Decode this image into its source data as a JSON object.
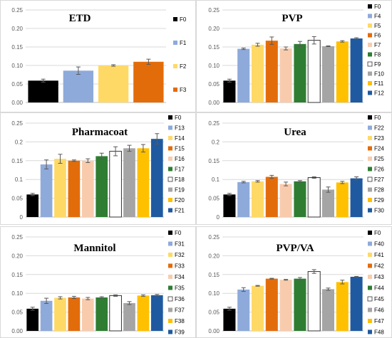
{
  "chart_data": [
    {
      "type": "bar",
      "title": "ETD",
      "ylim": [
        0,
        0.25
      ],
      "yticks": [
        "0.00",
        "0.05",
        "0.10",
        "0.15",
        "0.20",
        "0.25"
      ],
      "grid": true,
      "legend": "right",
      "categories": [
        "F0",
        "F1",
        "F2",
        "F3"
      ],
      "values": [
        0.059,
        0.086,
        0.1,
        0.11
      ],
      "errors": [
        0.004,
        0.01,
        0.002,
        0.007
      ],
      "colors": [
        "#000000",
        "#8eaadb",
        "#ffd966",
        "#e36c0a"
      ]
    },
    {
      "type": "bar",
      "title": "PVP",
      "ylim": [
        0,
        0.25
      ],
      "yticks": [
        "0.00",
        "0.05",
        "0.10",
        "0.15",
        "0.20",
        "0.25"
      ],
      "grid": true,
      "legend": "right",
      "categories": [
        "F0",
        "F4",
        "F5",
        "F6",
        "F7",
        "F8",
        "F9",
        "F10",
        "F11",
        "F12"
      ],
      "values": [
        0.059,
        0.145,
        0.156,
        0.167,
        0.146,
        0.158,
        0.168,
        0.152,
        0.165,
        0.173
      ],
      "errors": [
        0.004,
        0.002,
        0.004,
        0.01,
        0.004,
        0.007,
        0.01,
        0.001,
        0.002,
        0.002
      ],
      "colors": [
        "#000000",
        "#8eaadb",
        "#ffd966",
        "#e36c0a",
        "#f8cbad",
        "#2e7d32",
        "#ffffff",
        "#a5a5a5",
        "#ffc000",
        "#1f5aa0"
      ]
    },
    {
      "type": "bar",
      "title": "Pharmacoat",
      "ylim": [
        0,
        0.25
      ],
      "yticks": [
        "0",
        "0.05",
        "0.1",
        "0.15",
        "0.2",
        "0.25"
      ],
      "grid": true,
      "legend": "right",
      "categories": [
        "F0",
        "F13",
        "F14",
        "F15",
        "F16",
        "F17",
        "F18",
        "F19",
        "F20",
        "F21"
      ],
      "values": [
        0.06,
        0.14,
        0.155,
        0.15,
        0.15,
        0.162,
        0.175,
        0.183,
        0.183,
        0.208
      ],
      "errors": [
        0.003,
        0.012,
        0.012,
        0.002,
        0.005,
        0.008,
        0.012,
        0.008,
        0.01,
        0.014
      ],
      "colors": [
        "#000000",
        "#8eaadb",
        "#ffd966",
        "#e36c0a",
        "#f8cbad",
        "#2e7d32",
        "#ffffff",
        "#a5a5a5",
        "#ffc000",
        "#1f5aa0"
      ]
    },
    {
      "type": "bar",
      "title": "Urea",
      "ylim": [
        0,
        0.25
      ],
      "yticks": [
        "0",
        "0.05",
        "0.1",
        "0.15",
        "0.2",
        "0.25"
      ],
      "grid": true,
      "legend": "right",
      "categories": [
        "F0",
        "F22",
        "F23",
        "F24",
        "F25",
        "F26",
        "F27",
        "F28",
        "F29",
        "F30"
      ],
      "values": [
        0.06,
        0.093,
        0.095,
        0.107,
        0.088,
        0.095,
        0.105,
        0.073,
        0.092,
        0.103
      ],
      "errors": [
        0.003,
        0.002,
        0.002,
        0.004,
        0.005,
        0.002,
        0.002,
        0.007,
        0.003,
        0.004
      ],
      "colors": [
        "#000000",
        "#8eaadb",
        "#ffd966",
        "#e36c0a",
        "#f8cbad",
        "#2e7d32",
        "#ffffff",
        "#a5a5a5",
        "#ffc000",
        "#1f5aa0"
      ]
    },
    {
      "type": "bar",
      "title": "Mannitol",
      "ylim": [
        0,
        0.25
      ],
      "yticks": [
        "0.00",
        "0.05",
        "0.10",
        "0.15",
        "0.20",
        "0.25"
      ],
      "grid": true,
      "legend": "right",
      "categories": [
        "F0",
        "F31",
        "F32",
        "F33",
        "F34",
        "F35",
        "F36",
        "F37",
        "F38",
        "F39"
      ],
      "values": [
        0.059,
        0.08,
        0.088,
        0.089,
        0.086,
        0.089,
        0.094,
        0.074,
        0.094,
        0.095
      ],
      "errors": [
        0.004,
        0.007,
        0.003,
        0.003,
        0.003,
        0.002,
        0.002,
        0.004,
        0.002,
        0.002
      ],
      "colors": [
        "#000000",
        "#8eaadb",
        "#ffd966",
        "#e36c0a",
        "#f8cbad",
        "#2e7d32",
        "#ffffff",
        "#a5a5a5",
        "#ffc000",
        "#1f5aa0"
      ]
    },
    {
      "type": "bar",
      "title": "PVP/VA",
      "ylim": [
        0,
        0.25
      ],
      "yticks": [
        "0.00",
        "0.05",
        "0.10",
        "0.15",
        "0.20",
        "0.25"
      ],
      "grid": true,
      "legend": "right",
      "categories": [
        "F0",
        "F40",
        "F41",
        "F42",
        "F43",
        "F44",
        "F45",
        "F46",
        "F47",
        "F48"
      ],
      "values": [
        0.059,
        0.11,
        0.12,
        0.139,
        0.136,
        0.139,
        0.158,
        0.111,
        0.13,
        0.144
      ],
      "errors": [
        0.004,
        0.005,
        0.001,
        0.001,
        0.001,
        0.003,
        0.005,
        0.003,
        0.005,
        0.001
      ],
      "colors": [
        "#000000",
        "#8eaadb",
        "#ffd966",
        "#e36c0a",
        "#f8cbad",
        "#2e7d32",
        "#ffffff",
        "#a5a5a5",
        "#ffc000",
        "#1f5aa0"
      ]
    }
  ]
}
